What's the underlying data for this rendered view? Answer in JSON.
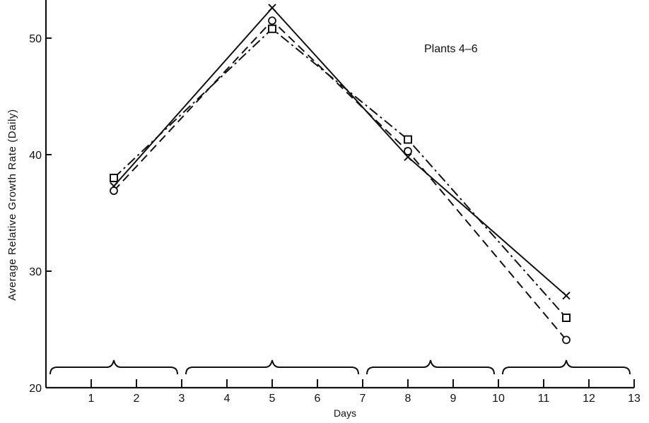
{
  "chart_data": {
    "type": "line",
    "title": "",
    "annotation": "Plants 4–6",
    "xlabel": "Days",
    "ylabel": "Average Relative Growth Rate (Daily)",
    "xlim": [
      0,
      13
    ],
    "ylim": [
      20,
      54
    ],
    "x_ticks": [
      1,
      2,
      3,
      4,
      5,
      6,
      7,
      8,
      9,
      10,
      11,
      12,
      13
    ],
    "x_tick_labels": [
      "1",
      "2",
      "3",
      "4",
      "5",
      "6",
      "7",
      "8",
      "9",
      "10",
      "11",
      "12",
      "13"
    ],
    "y_ticks": [
      20,
      30,
      40,
      50
    ],
    "y_tick_labels": [
      "20",
      "30",
      "40",
      "50"
    ],
    "grid": false,
    "legend": "none",
    "x_braces": [
      [
        0,
        3
      ],
      [
        3,
        7
      ],
      [
        7,
        10
      ],
      [
        10,
        13
      ]
    ],
    "series": [
      {
        "marker": "x",
        "line_style": "solid",
        "x": [
          1.5,
          5.0,
          8.0,
          11.5
        ],
        "values": [
          37.3,
          52.6,
          39.8,
          27.9
        ]
      },
      {
        "marker": "square",
        "line_style": "dash-dot",
        "x": [
          1.5,
          5.0,
          8.0,
          11.5
        ],
        "values": [
          38.0,
          50.8,
          41.3,
          26.0
        ]
      },
      {
        "marker": "circle",
        "line_style": "dashed",
        "x": [
          1.5,
          5.0,
          8.0,
          11.5
        ],
        "values": [
          36.9,
          51.5,
          40.3,
          24.1
        ]
      }
    ]
  }
}
